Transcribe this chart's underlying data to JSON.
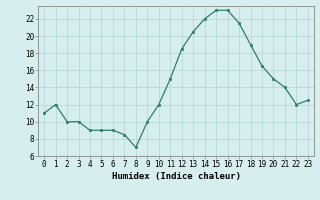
{
  "x": [
    0,
    1,
    2,
    3,
    4,
    5,
    6,
    7,
    8,
    9,
    10,
    11,
    12,
    13,
    14,
    15,
    16,
    17,
    18,
    19,
    20,
    21,
    22,
    23
  ],
  "y": [
    11.0,
    12.0,
    10.0,
    10.0,
    9.0,
    9.0,
    9.0,
    8.5,
    7.0,
    10.0,
    12.0,
    15.0,
    18.5,
    20.5,
    22.0,
    23.0,
    23.0,
    21.5,
    19.0,
    16.5,
    15.0,
    14.0,
    12.0,
    12.5
  ],
  "line_color": "#2e7d6e",
  "marker": "s",
  "marker_size": 2,
  "bg_color": "#d6eeee",
  "grid_color": "#b8d8d8",
  "xlabel": "Humidex (Indice chaleur)",
  "ylim": [
    6,
    23.5
  ],
  "xlim": [
    -0.5,
    23.5
  ],
  "yticks": [
    6,
    8,
    10,
    12,
    14,
    16,
    18,
    20,
    22
  ],
  "xtick_labels": [
    "0",
    "1",
    "2",
    "3",
    "4",
    "5",
    "6",
    "7",
    "8",
    "9",
    "10",
    "11",
    "12",
    "13",
    "14",
    "15",
    "16",
    "17",
    "18",
    "19",
    "20",
    "21",
    "22",
    "23"
  ],
  "tick_font_size": 5.5,
  "label_font_size": 6.5
}
